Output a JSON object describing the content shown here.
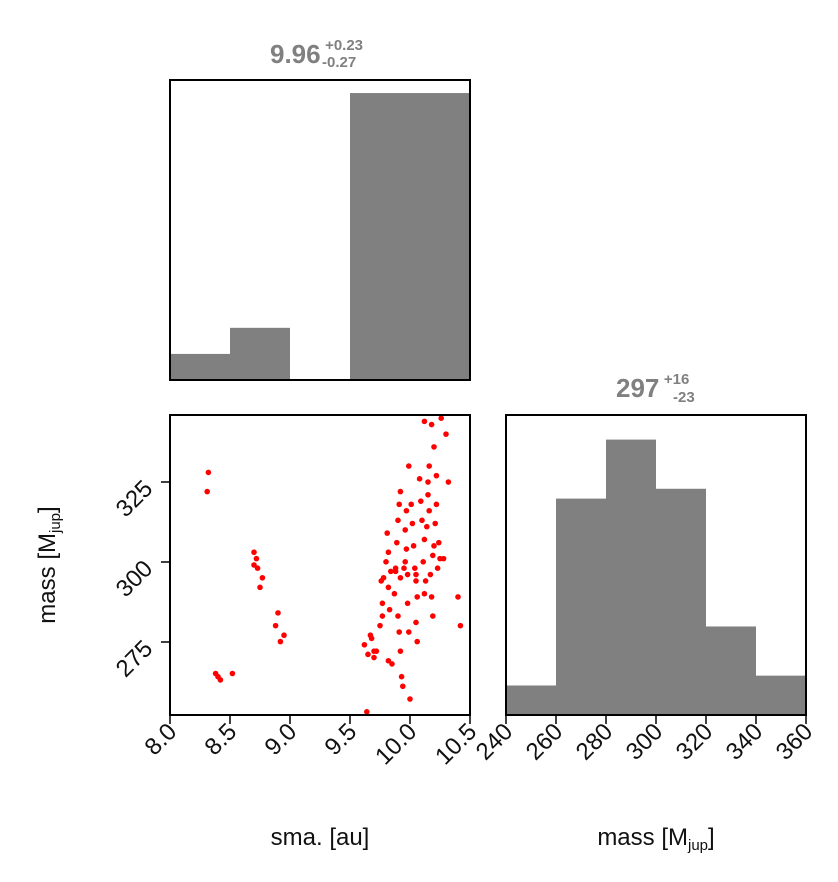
{
  "chart_data": [
    {
      "type": "bar",
      "panel": "marginal-sma",
      "title": {
        "value": "9.96",
        "plus": "+0.23",
        "minus": "-0.27"
      },
      "bin_edges": [
        8.0,
        8.5,
        9.0,
        9.5,
        10.0,
        10.5
      ],
      "values": [
        1,
        2,
        0,
        11,
        11
      ],
      "xlim": [
        8.0,
        10.5
      ],
      "ylim": [
        0,
        11.5
      ],
      "color": "#808080"
    },
    {
      "type": "scatter",
      "panel": "joint-sma-mass",
      "xlabel": "sma. [au]",
      "ylabel": {
        "base": "mass [M",
        "sub": "jup",
        "close": "]"
      },
      "xlim": [
        8.0,
        10.5
      ],
      "ylim": [
        252,
        346
      ],
      "xticks": [
        8.0,
        8.5,
        9.0,
        9.5,
        10.0,
        10.5
      ],
      "xtick_labels": [
        "8.0",
        "8.5",
        "9.0",
        "9.5",
        "10.0",
        "10.5"
      ],
      "yticks": [
        275,
        300,
        325
      ],
      "ytick_labels": [
        "275",
        "300",
        "325"
      ],
      "color": "#ff0000",
      "points": [
        [
          8.32,
          328
        ],
        [
          8.31,
          322
        ],
        [
          8.38,
          265
        ],
        [
          8.4,
          264
        ],
        [
          8.42,
          263
        ],
        [
          8.52,
          265
        ],
        [
          8.7,
          303
        ],
        [
          8.72,
          301
        ],
        [
          8.7,
          299
        ],
        [
          8.73,
          298
        ],
        [
          8.77,
          295
        ],
        [
          8.75,
          292
        ],
        [
          8.88,
          280
        ],
        [
          8.9,
          284
        ],
        [
          8.92,
          275
        ],
        [
          8.95,
          277
        ],
        [
          9.62,
          274
        ],
        [
          9.65,
          271
        ],
        [
          9.67,
          277
        ],
        [
          9.68,
          276
        ],
        [
          9.7,
          272
        ],
        [
          9.7,
          270
        ],
        [
          9.72,
          272
        ],
        [
          9.75,
          280
        ],
        [
          9.77,
          283
        ],
        [
          9.77,
          287
        ],
        [
          9.76,
          294
        ],
        [
          9.78,
          295
        ],
        [
          9.8,
          300
        ],
        [
          9.82,
          303
        ],
        [
          9.81,
          309
        ],
        [
          9.84,
          297
        ],
        [
          9.83,
          285
        ],
        [
          9.82,
          269
        ],
        [
          9.85,
          268
        ],
        [
          9.87,
          290
        ],
        [
          9.88,
          298
        ],
        [
          9.89,
          306
        ],
        [
          9.9,
          313
        ],
        [
          9.91,
          318
        ],
        [
          9.92,
          322
        ],
        [
          9.9,
          283
        ],
        [
          9.91,
          278
        ],
        [
          9.92,
          272
        ],
        [
          9.93,
          264
        ],
        [
          9.94,
          261
        ],
        [
          9.95,
          298
        ],
        [
          9.96,
          300
        ],
        [
          9.97,
          304
        ],
        [
          9.96,
          310
        ],
        [
          9.97,
          316
        ],
        [
          9.98,
          296
        ],
        [
          9.98,
          287
        ],
        [
          9.99,
          278
        ],
        [
          10.0,
          257
        ],
        [
          9.99,
          330
        ],
        [
          10.01,
          318
        ],
        [
          10.02,
          312
        ],
        [
          10.03,
          305
        ],
        [
          10.04,
          298
        ],
        [
          10.05,
          294
        ],
        [
          10.06,
          289
        ],
        [
          10.05,
          296
        ],
        [
          10.06,
          275
        ],
        [
          10.05,
          281
        ],
        [
          10.08,
          326
        ],
        [
          10.09,
          319
        ],
        [
          10.1,
          313
        ],
        [
          10.12,
          307
        ],
        [
          10.11,
          300
        ],
        [
          10.13,
          294
        ],
        [
          10.12,
          290
        ],
        [
          10.15,
          321
        ],
        [
          10.16,
          316
        ],
        [
          10.15,
          325
        ],
        [
          10.16,
          330
        ],
        [
          10.14,
          311
        ],
        [
          10.17,
          296
        ],
        [
          10.18,
          289
        ],
        [
          10.19,
          302
        ],
        [
          10.2,
          305
        ],
        [
          10.21,
          312
        ],
        [
          10.22,
          318
        ],
        [
          10.23,
          298
        ],
        [
          10.24,
          306
        ],
        [
          10.25,
          301
        ],
        [
          10.19,
          283
        ],
        [
          10.12,
          344
        ],
        [
          10.18,
          343
        ],
        [
          10.2,
          336
        ],
        [
          10.22,
          327
        ],
        [
          10.26,
          345
        ],
        [
          10.3,
          340
        ],
        [
          10.32,
          325
        ],
        [
          10.28,
          301
        ],
        [
          10.4,
          289
        ],
        [
          10.42,
          280
        ],
        [
          9.82,
          292
        ],
        [
          9.88,
          297
        ],
        [
          9.92,
          295
        ],
        [
          9.64,
          253
        ]
      ]
    },
    {
      "type": "bar",
      "panel": "marginal-mass",
      "title": {
        "value": "297",
        "plus": "+16",
        "minus": "-23"
      },
      "xlabel": {
        "base": "mass [M",
        "sub": "jup",
        "close": "]"
      },
      "bin_edges": [
        240,
        260,
        280,
        300,
        320,
        340,
        360
      ],
      "values": [
        3,
        22,
        28,
        23,
        9,
        4
      ],
      "xlim": [
        240,
        360
      ],
      "ylim": [
        0,
        30.5
      ],
      "xticks": [
        240,
        260,
        280,
        300,
        320,
        340,
        360
      ],
      "xtick_labels": [
        "240",
        "260",
        "280",
        "300",
        "320",
        "340",
        "360"
      ],
      "color": "#808080"
    }
  ]
}
